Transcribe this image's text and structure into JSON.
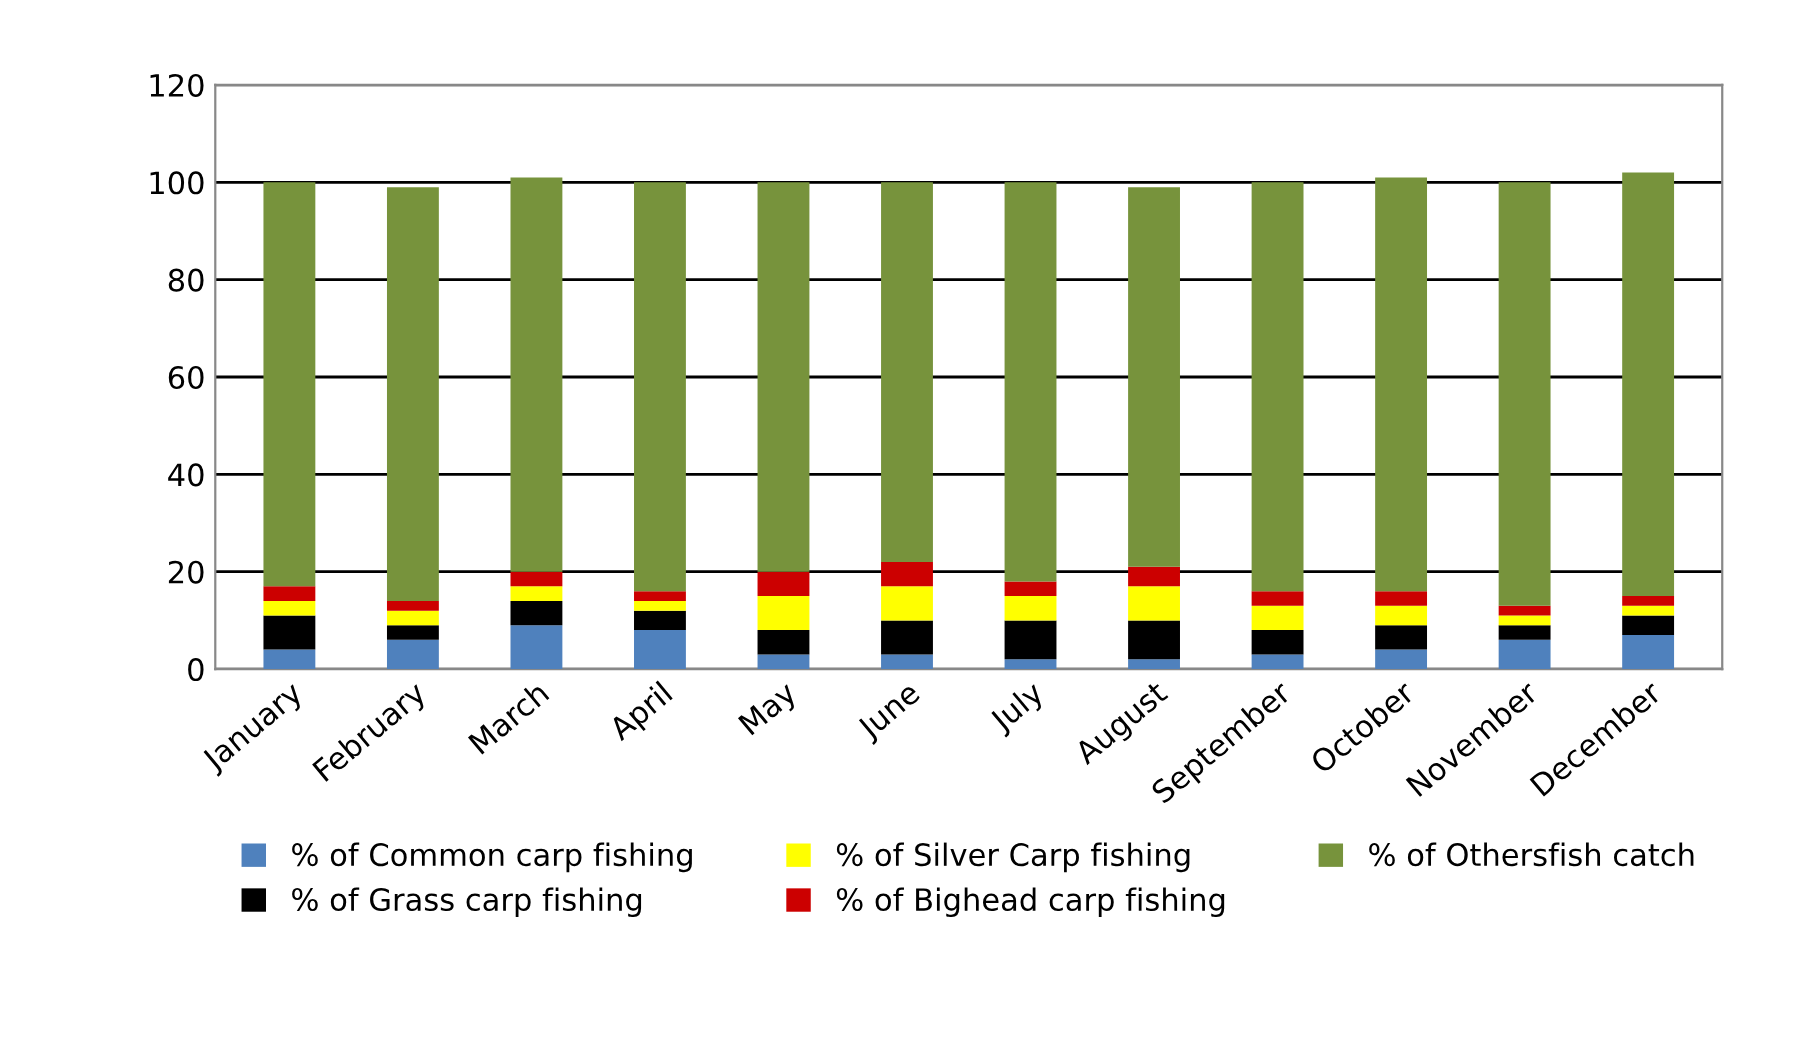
{
  "chart_data": {
    "type": "bar",
    "stacked": true,
    "categories": [
      "January",
      "February",
      "March",
      "April",
      "May",
      "June",
      "July",
      "August",
      "September",
      "October",
      "November",
      "December"
    ],
    "series": [
      {
        "name": "% of Common carp fishing",
        "color": "#4f81bd",
        "values": [
          4,
          6,
          9,
          8,
          3,
          3,
          2,
          2,
          3,
          4,
          6,
          7
        ]
      },
      {
        "name": "% of Grass carp fishing",
        "color": "#000000",
        "values": [
          7,
          3,
          5,
          4,
          5,
          7,
          8,
          8,
          5,
          5,
          3,
          4
        ]
      },
      {
        "name": "% of Silver Carp fishing",
        "color": "#ffff00",
        "values": [
          3,
          3,
          3,
          2,
          7,
          7,
          5,
          7,
          5,
          4,
          2,
          2
        ]
      },
      {
        "name": "% of Bighead carp fishing",
        "color": "#cc0000",
        "values": [
          3,
          2,
          3,
          2,
          5,
          5,
          3,
          4,
          3,
          3,
          2,
          2
        ]
      },
      {
        "name": "% of Othersfish catch",
        "color": "#77933c",
        "values": [
          83,
          85,
          81,
          84,
          80,
          78,
          82,
          78,
          84,
          85,
          87,
          87
        ]
      }
    ],
    "ylim": [
      0,
      120
    ],
    "yticks": [
      0,
      20,
      40,
      60,
      80,
      100,
      120
    ],
    "grid": "y",
    "legend": "bottom"
  }
}
